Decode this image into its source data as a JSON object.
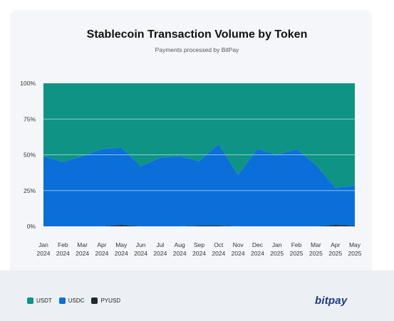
{
  "chart_data": {
    "type": "area",
    "stacked": true,
    "percent": true,
    "title": "Stablecoin Transaction Volume by Token",
    "subtitle": "Payments processed by BitPay",
    "categories": [
      [
        "Jan",
        "2024"
      ],
      [
        "Feb",
        "2024"
      ],
      [
        "Mar",
        "2024"
      ],
      [
        "Apr",
        "2024"
      ],
      [
        "May",
        "2024"
      ],
      [
        "Jun",
        "2024"
      ],
      [
        "Jul",
        "2024"
      ],
      [
        "Aug",
        "2024"
      ],
      [
        "Sep",
        "2024"
      ],
      [
        "Oct",
        "2024"
      ],
      [
        "Nov",
        "2024"
      ],
      [
        "Dec",
        "2024"
      ],
      [
        "Jan",
        "2025"
      ],
      [
        "Feb",
        "2025"
      ],
      [
        "Mar",
        "2025"
      ],
      [
        "Apr",
        "2025"
      ],
      [
        "May",
        "2025"
      ]
    ],
    "y_ticks": [
      "0%",
      "25%",
      "50%",
      "75%",
      "100%"
    ],
    "ylim": [
      0,
      100
    ],
    "grid": true,
    "legend_position": "bottom-left",
    "series": [
      {
        "name": "PYUSD",
        "color": "#1f2a2e",
        "values": [
          0,
          0,
          0,
          0,
          1,
          0,
          0,
          0,
          0.5,
          0.5,
          0,
          0,
          0,
          0,
          0,
          1,
          0.5
        ]
      },
      {
        "name": "USDC",
        "color": "#0a6fd8",
        "values": [
          49,
          45,
          49,
          54,
          54,
          42,
          48,
          49,
          45,
          57,
          36,
          54,
          50,
          54,
          43,
          26,
          28
        ]
      },
      {
        "name": "USDT",
        "color": "#0e9385",
        "values": [
          51,
          55,
          51,
          46,
          45,
          58,
          52,
          51,
          54.5,
          42.5,
          64,
          46,
          50,
          46,
          57,
          73,
          71.5
        ]
      }
    ],
    "legend_order": [
      "USDT",
      "USDC",
      "PYUSD"
    ]
  },
  "brand": {
    "text": "bitpay",
    "color": "#1a3b8a"
  }
}
